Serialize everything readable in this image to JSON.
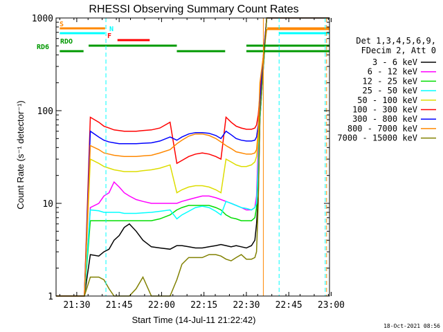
{
  "title": "RHESSI Observing Summary Count Rates",
  "xlabel": "Start Time (14-Jul-11 21:22:42)",
  "ylabel": "Count Rate (s⁻¹ detector⁻¹)",
  "timestamp": "18-Oct-2021 08:56",
  "legend_header": [
    "Det 1,3,4,5,6,9,",
    "FDecim 2, Att 0"
  ],
  "flags": [
    {
      "label": "S",
      "color": "#ff8800",
      "segments": [
        [
          21.4,
          21.667
        ],
        [
          22.623,
          22.99
        ]
      ]
    },
    {
      "label": "N",
      "color": "#00ffff",
      "segments": [
        [
          21.4,
          21.667
        ],
        [
          22.693,
          22.99
        ]
      ]
    },
    {
      "label": "F",
      "color": "#ff0000",
      "segments": [
        [
          21.74,
          21.93
        ]
      ]
    },
    {
      "label": "RDO",
      "color": "#009900",
      "segments": [
        [
          21.57,
          22.09
        ],
        [
          22.5,
          22.99
        ]
      ]
    },
    {
      "label": "RD6",
      "color": "#009900",
      "segments": [
        [
          21.4,
          21.54
        ],
        [
          22.09,
          22.375
        ],
        [
          22.5,
          22.99
        ]
      ]
    }
  ],
  "chart_data": {
    "type": "line",
    "title": "RHESSI Observing Summary Count Rates",
    "xlabel": "Start Time (14-Jul-11 21:22:42)",
    "ylabel": "Count Rate (s⁻¹ detector⁻¹)",
    "x_units": "hours UT (14-Jul-2011)",
    "xlim": [
      21.378,
      22.99
    ],
    "ylim": [
      1,
      1000
    ],
    "yscale": "log",
    "grid": false,
    "legend_position": "right",
    "x_ticks": [
      21.5,
      21.75,
      22.0,
      22.25,
      22.5,
      22.75,
      23.0
    ],
    "x_tick_labels": [
      "21:30",
      "21:45",
      "22:00",
      "22:15",
      "22:30",
      "22:45",
      "23:00"
    ],
    "y_ticks": [
      1,
      10,
      100,
      1000
    ],
    "y_tick_labels": [
      "1",
      "10",
      "100",
      "1000"
    ],
    "x": [
      21.378,
      21.44,
      21.5,
      21.545,
      21.58,
      21.63,
      21.66,
      21.69,
      21.72,
      21.75,
      21.78,
      21.81,
      21.85,
      21.89,
      21.94,
      21.99,
      22.05,
      22.09,
      22.12,
      22.16,
      22.2,
      22.24,
      22.28,
      22.32,
      22.35,
      22.38,
      22.41,
      22.44,
      22.47,
      22.5,
      22.53,
      22.55,
      22.56,
      22.57,
      22.58,
      22.62,
      22.99
    ],
    "series": [
      {
        "name": "3 - 6 keV",
        "color": "#000000",
        "values": [
          1,
          1,
          1,
          1,
          2.8,
          2.7,
          3.0,
          3.2,
          4,
          4.5,
          5.5,
          6,
          5,
          4,
          3.4,
          3.3,
          3.2,
          3.5,
          3.5,
          3.4,
          3.3,
          3.3,
          3.4,
          3.5,
          3.6,
          3.5,
          3.4,
          3.5,
          3.4,
          3.3,
          3.5,
          4,
          6,
          12,
          80,
          1000,
          1000
        ]
      },
      {
        "name": "6 - 12 keV",
        "color": "#ff00ff",
        "values": [
          1,
          1,
          1,
          1,
          9,
          10,
          12,
          13,
          17,
          15,
          13,
          12,
          11,
          10.5,
          10,
          10,
          10,
          10,
          10.5,
          11,
          11.5,
          12,
          12,
          11.5,
          11,
          10.5,
          10,
          9.5,
          9,
          8.5,
          8.5,
          9,
          12,
          40,
          150,
          1000,
          1000
        ]
      },
      {
        "name": "12 - 25 keV",
        "color": "#00dd00",
        "values": [
          1,
          1,
          1,
          1,
          6.5,
          6.5,
          6.5,
          6.5,
          6.5,
          6.5,
          6.5,
          6.5,
          6.5,
          6.5,
          6.5,
          6.8,
          7.5,
          8.5,
          9.0,
          9.5,
          9.5,
          9.5,
          9.5,
          9.0,
          8.5,
          7.5,
          7.0,
          6.8,
          6.5,
          6.5,
          6.5,
          7,
          9,
          25,
          100,
          1000,
          1000
        ]
      },
      {
        "name": "25 - 50 keV",
        "color": "#00ffff",
        "values": [
          1,
          1,
          1,
          1,
          8.5,
          8.3,
          8.0,
          8.0,
          8.0,
          8.0,
          7.8,
          7.8,
          7.8,
          7.9,
          8.0,
          8.2,
          8.5,
          6.8,
          7.5,
          8.2,
          9.0,
          9.3,
          9.0,
          8.2,
          7.5,
          10.5,
          10.0,
          9.5,
          9.0,
          8.8,
          8.5,
          9,
          10,
          25,
          80,
          1000,
          1000
        ]
      },
      {
        "name": "50 - 100 keV",
        "color": "#dddd00",
        "values": [
          1,
          1,
          1,
          1,
          30,
          27,
          25,
          24,
          23,
          22.5,
          22,
          22,
          22,
          22.5,
          23,
          24,
          26,
          13,
          14,
          15,
          15.5,
          15.5,
          15,
          14,
          13,
          30,
          28,
          26,
          25,
          25,
          26,
          28,
          32,
          50,
          120,
          1000,
          1000
        ]
      },
      {
        "name": "100 - 300 keV",
        "color": "#ff0000",
        "values": [
          1,
          1,
          1,
          1,
          85,
          75,
          68,
          65,
          62,
          61,
          60,
          60,
          60,
          61,
          62,
          65,
          75,
          27,
          29,
          32,
          34,
          35,
          34,
          32,
          30,
          85,
          75,
          68,
          65,
          63,
          63,
          65,
          70,
          90,
          150,
          1000,
          1000
        ]
      },
      {
        "name": "300 - 800 keV",
        "color": "#0000ff",
        "values": [
          1,
          1,
          1,
          1,
          60,
          52,
          48,
          46,
          45,
          44,
          44,
          44,
          44,
          44.5,
          45,
          47,
          52,
          48,
          52,
          56,
          58,
          58,
          57,
          54,
          50,
          60,
          55,
          50,
          48,
          47,
          47,
          48,
          52,
          70,
          130,
          1000,
          1000
        ]
      },
      {
        "name": "800 - 7000 keV",
        "color": "#ff8800",
        "values": [
          1,
          1,
          1,
          1,
          42,
          38,
          35,
          34,
          33,
          32.5,
          32,
          32,
          32,
          32.5,
          33,
          35,
          38,
          44,
          48,
          53,
          56,
          56,
          54,
          50,
          46,
          42,
          39,
          36,
          35,
          34,
          34,
          35,
          38,
          60,
          200,
          750,
          750
        ]
      },
      {
        "name": "7000 - 15000 keV",
        "color": "#808000",
        "values": [
          1,
          1,
          1,
          1,
          1.6,
          1.6,
          1.5,
          1.2,
          1.0,
          1.0,
          1.0,
          1.0,
          1.2,
          1.6,
          1.0,
          1.0,
          1.0,
          1.5,
          2.2,
          2.6,
          2.6,
          2.6,
          2.8,
          2.8,
          2.7,
          2.5,
          2.4,
          2.6,
          2.8,
          2.5,
          2.5,
          2.6,
          3.0,
          10,
          90,
          1000,
          1000
        ]
      }
    ]
  }
}
